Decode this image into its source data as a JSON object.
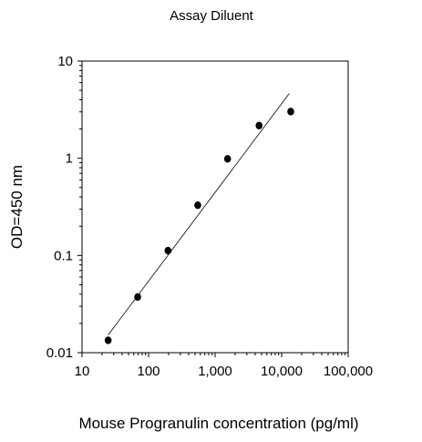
{
  "chart_data": {
    "type": "scatter",
    "title": "Assay Diluent",
    "xlabel": "Mouse Progranulin concentration (pg/ml)",
    "ylabel": "OD=450 nm",
    "x_scale": "log",
    "y_scale": "log",
    "xlim": [
      10,
      100000
    ],
    "ylim": [
      0.01,
      10
    ],
    "x_ticks": [
      10,
      100,
      1000,
      10000,
      100000
    ],
    "x_tick_labels": [
      "10",
      "100",
      "1,000",
      "10,000",
      "100,000"
    ],
    "y_ticks": [
      0.01,
      0.1,
      1,
      10
    ],
    "y_tick_labels": [
      "0.01",
      "0.1",
      "1",
      "10"
    ],
    "grid": false,
    "legend": false,
    "series": [
      {
        "x": [
          24.7,
          68.6,
          196,
          549,
          1540,
          4580,
          13700
        ],
        "y": [
          0.0134,
          0.0374,
          0.112,
          0.329,
          0.986,
          2.17,
          3.02
        ]
      }
    ],
    "fit_line": {
      "x": [
        24.7,
        13000
      ],
      "y": [
        0.0152,
        4.63
      ]
    },
    "colors": {
      "marker": "#000000",
      "line": "#000000",
      "axis": "#000000"
    }
  }
}
